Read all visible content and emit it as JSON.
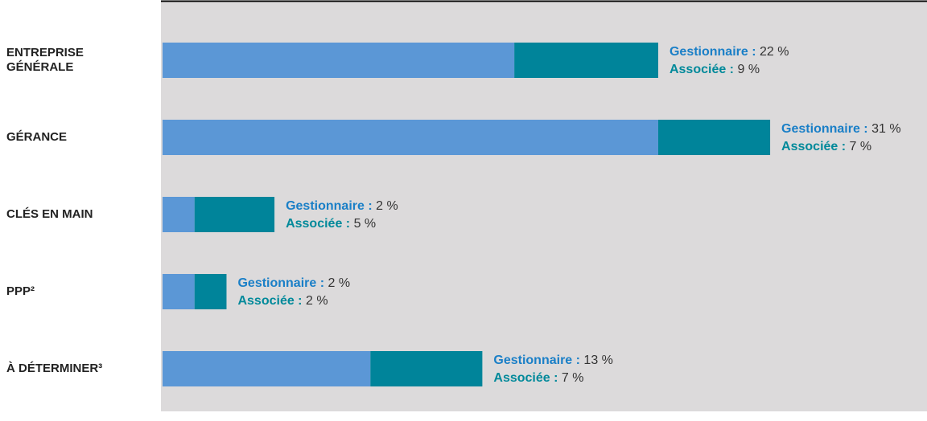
{
  "chart_data": {
    "type": "stacked-bar-horizontal",
    "categories": [
      "ENTREPRISE GÉNÉRALE",
      "GÉRANCE",
      "CLÉS EN MAIN",
      "PPP²",
      "À DÉTERMINER³"
    ],
    "series": [
      {
        "name": "Gestionnaire :",
        "color": "#5b97d6",
        "label_color": "#1a7fc7",
        "values": [
          22,
          31,
          2,
          2,
          13
        ],
        "value_labels": [
          "22 %",
          "31 %",
          "2 %",
          "2 %",
          "13 %"
        ]
      },
      {
        "name": "Associée :",
        "color": "#00849a",
        "label_color": "#00899a",
        "values": [
          9,
          7,
          5,
          2,
          7
        ],
        "value_labels": [
          "9 %",
          "7 %",
          "5 %",
          "2 %",
          "7 %"
        ]
      }
    ]
  }
}
